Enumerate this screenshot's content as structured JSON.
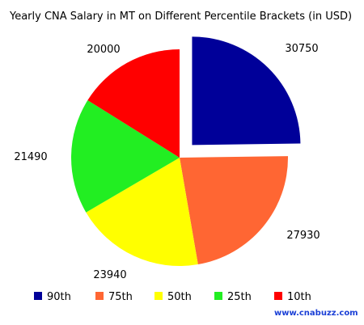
{
  "chart_data": {
    "type": "pie",
    "title": "Yearly CNA Salary in MT on Different Percentile Brackets (in USD)",
    "categories": [
      "90th",
      "75th",
      "50th",
      "25th",
      "10th"
    ],
    "values": [
      30750,
      27930,
      23940,
      21490,
      20000
    ],
    "value_labels": [
      "30750",
      "27930",
      "23940",
      "21490",
      "20000"
    ],
    "colors": [
      "#000099",
      "#ff6633",
      "#ffff00",
      "#22ee22",
      "#ff0000"
    ],
    "exploded_slice": "90th",
    "legend_position": "bottom"
  },
  "footer": {
    "website": "www.cnabuzz.com"
  }
}
